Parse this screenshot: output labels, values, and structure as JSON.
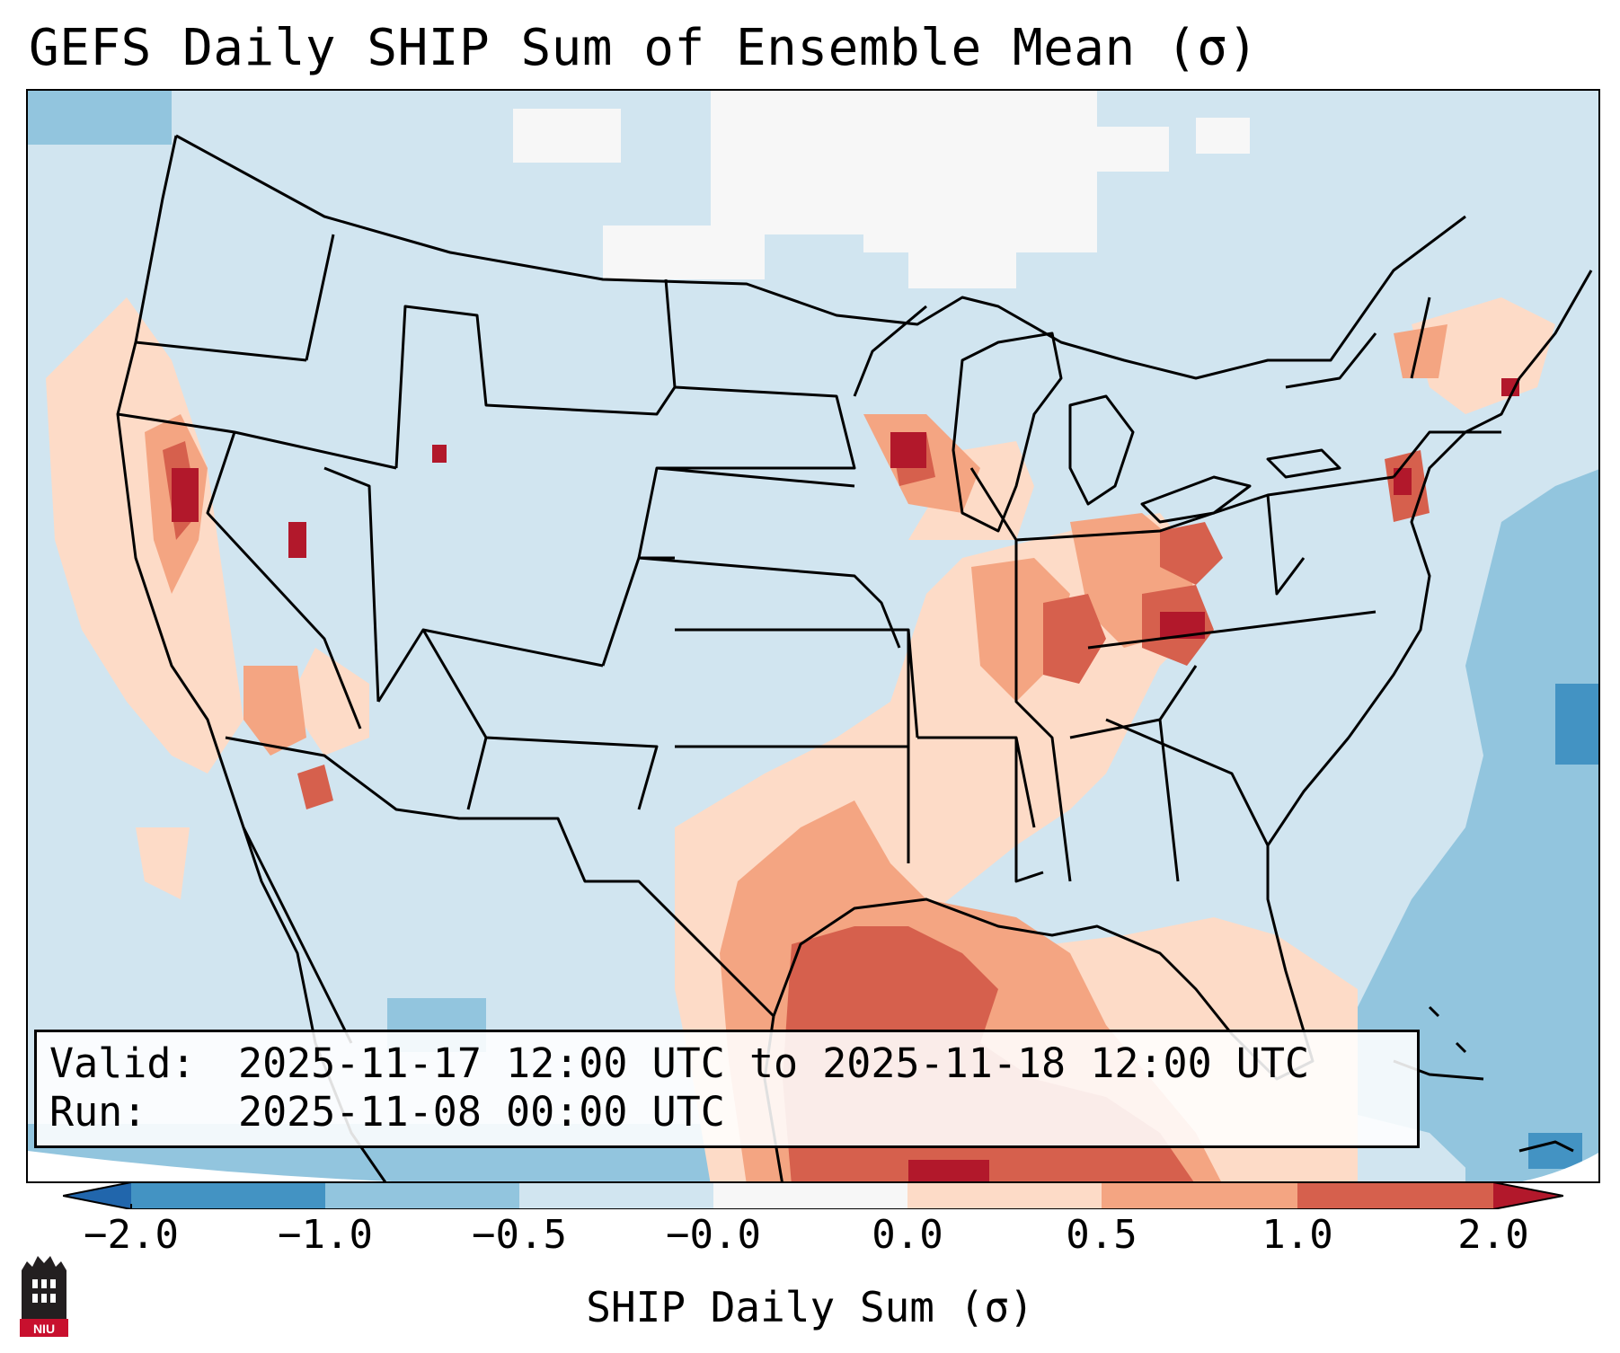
{
  "title": "GEFS Daily SHIP Sum of Ensemble Mean (σ)",
  "info": {
    "valid_label": "Valid:",
    "valid_value": "2025-11-17 12:00 UTC to 2025-11-18 12:00 UTC",
    "run_label": "Run:",
    "run_value": "2025-11-08 00:00 UTC"
  },
  "colorbar": {
    "label": "SHIP Daily Sum (σ)",
    "tick_labels": [
      "−2.0",
      "−1.0",
      "−0.5",
      "−0.0",
      "0.0",
      "0.5",
      "1.0",
      "2.0"
    ],
    "bins": [
      {
        "from": "-inf",
        "to": -2.0,
        "color": "#2166ac"
      },
      {
        "from": -2.0,
        "to": -1.0,
        "color": "#4393c3"
      },
      {
        "from": -1.0,
        "to": -0.5,
        "color": "#92c5de"
      },
      {
        "from": -0.5,
        "to": -0.0,
        "color": "#d1e5f0"
      },
      {
        "from": -0.0,
        "to": 0.0,
        "color": "#f7f7f7"
      },
      {
        "from": 0.0,
        "to": 0.5,
        "color": "#fddbc7"
      },
      {
        "from": 0.5,
        "to": 1.0,
        "color": "#f4a582"
      },
      {
        "from": 1.0,
        "to": 2.0,
        "color": "#d6604d"
      },
      {
        "from": 2.0,
        "to": "inf",
        "color": "#b2182b"
      }
    ]
  },
  "logo": {
    "text": "NIU",
    "color": "#c8102e"
  }
}
